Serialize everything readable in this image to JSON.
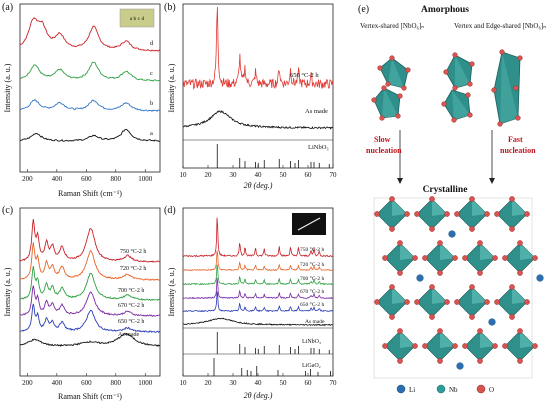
{
  "panels": {
    "a": {
      "label": "(a)",
      "xlabel": "Raman Shift (cm⁻¹)",
      "ylabel": "Intensity (a. u.)",
      "ticks": [
        "200",
        "400",
        "600",
        "800",
        "1000"
      ],
      "curve_labels": [
        "d",
        "c",
        "b",
        "a"
      ],
      "inset_text": "a b c d",
      "colors": [
        "#c8222a",
        "#2ea043",
        "#2f73c9",
        "#111111"
      ]
    },
    "b": {
      "label": "(b)",
      "ylabel": "Intensity (a. u.)",
      "xlabel": "2θ (deg.)",
      "ticks": [
        "10",
        "20",
        "30",
        "40",
        "50",
        "60",
        "70"
      ],
      "series_labels": [
        "650 °C-2 h",
        "As made"
      ],
      "reference": "LiNbO₃",
      "colors": [
        "#e23a34",
        "#111111"
      ]
    },
    "c": {
      "label": "(c)",
      "ylabel": "Intensity (a. u.)",
      "xlabel": "Raman Shift (cm⁻¹)",
      "ticks": [
        "200",
        "400",
        "600",
        "800",
        "1000"
      ],
      "series_labels": [
        "750 °C-2 h",
        "720 °C-2 h",
        "700 °C-2 h",
        "670 °C-2 h",
        "650 °C-2 h",
        "As made"
      ],
      "colors": [
        "#c8222a",
        "#e8642a",
        "#2ea043",
        "#7a2aa6",
        "#2a3fb8",
        "#111111"
      ]
    },
    "d": {
      "label": "(d)",
      "ylabel": "Intensity (a. u.)",
      "xlabel": "2θ (deg.)",
      "ticks": [
        "10",
        "20",
        "30",
        "40",
        "50",
        "60",
        "70"
      ],
      "series_labels": [
        "750 °C-2 h",
        "720 °C-2 h",
        "700 °C-2 h",
        "670 °C-2 h",
        "650 °C-2 h",
        "As made"
      ],
      "references": [
        "LiNbO₃",
        "LiGaO₂"
      ],
      "colors": [
        "#c8222a",
        "#e8642a",
        "#2ea043",
        "#7a2aa6",
        "#2a3fb8",
        "#111111"
      ]
    },
    "e": {
      "label": "(e)",
      "title_top": "Amorphous",
      "caption_left": "Vertex-shared [NbO₆]ₙ",
      "caption_right": "Vertex and Edge-shared [NbO₆]ₙ",
      "slow": "Slow nucleation",
      "fast": "Fast nucleation",
      "title_bottom": "Crystalline",
      "legend": [
        "Li",
        "Nb",
        "O"
      ],
      "colors": {
        "octahedron": "#2f8f8a",
        "li": "#2a6fb0",
        "nb": "#2d9c9a",
        "o": "#d9534f",
        "arrow_text": "#c0141b"
      }
    }
  },
  "chart_data": [
    {
      "type": "line",
      "panel": "a",
      "xlabel": "Raman Shift (cm⁻¹)",
      "ylabel": "Intensity (a. u.)",
      "xlim": [
        150,
        1100
      ],
      "series": [
        {
          "name": "d",
          "peaks": [
            [
              240,
              1.0
            ],
            [
              300,
              0.75
            ],
            [
              420,
              0.55
            ],
            [
              650,
              0.9
            ],
            [
              870,
              0.35
            ]
          ]
        },
        {
          "name": "c",
          "peaks": [
            [
              250,
              0.6
            ],
            [
              420,
              0.4
            ],
            [
              650,
              0.7
            ],
            [
              870,
              0.35
            ]
          ]
        },
        {
          "name": "b",
          "peaks": [
            [
              250,
              0.4
            ],
            [
              420,
              0.3
            ],
            [
              650,
              0.4
            ],
            [
              870,
              0.3
            ]
          ]
        },
        {
          "name": "a",
          "peaks": [
            [
              260,
              0.3
            ],
            [
              650,
              0.2
            ],
            [
              870,
              0.45
            ]
          ]
        }
      ]
    },
    {
      "type": "line",
      "panel": "b",
      "xlabel": "2θ (deg.)",
      "ylabel": "Intensity (a. u.)",
      "xlim": [
        10,
        70
      ],
      "series": [
        {
          "name": "650 °C-2 h",
          "peaks": [
            [
              23.7,
              1.0
            ],
            [
              32.7,
              0.35
            ],
            [
              34.8,
              0.2
            ],
            [
              39.0,
              0.15
            ],
            [
              48.5,
              0.2
            ],
            [
              53.0,
              0.18
            ],
            [
              56.2,
              0.15
            ],
            [
              61.2,
              0.1
            ]
          ]
        },
        {
          "name": "As made",
          "peaks": [
            [
              25,
              0.55
            ]
          ]
        }
      ],
      "reference_lines": [
        23.7,
        32.7,
        34.8,
        39.0,
        40.1,
        42.5,
        48.5,
        53.0,
        54.8,
        56.2,
        61.2,
        62.4,
        64.5,
        68.5
      ]
    },
    {
      "type": "line",
      "panel": "c",
      "xlabel": "Raman Shift (cm⁻¹)",
      "ylabel": "Intensity (a. u.)",
      "xlim": [
        150,
        1100
      ],
      "series": [
        {
          "name": "750 °C-2 h"
        },
        {
          "name": "720 °C-2 h"
        },
        {
          "name": "700 °C-2 h"
        },
        {
          "name": "670 °C-2 h"
        },
        {
          "name": "650 °C-2 h"
        },
        {
          "name": "As made"
        }
      ],
      "peaks_cm": [
        240,
        270,
        330,
        370,
        435,
        630,
        880
      ]
    },
    {
      "type": "line",
      "panel": "d",
      "xlabel": "2θ (deg.)",
      "ylabel": "Intensity (a. u.)",
      "xlim": [
        10,
        70
      ],
      "series": [
        {
          "name": "750 °C-2 h"
        },
        {
          "name": "720 °C-2 h"
        },
        {
          "name": "700 °C-2 h"
        },
        {
          "name": "670 °C-2 h"
        },
        {
          "name": "650 °C-2 h"
        },
        {
          "name": "As made"
        }
      ],
      "peaks_deg": [
        23.7,
        32.7,
        34.8,
        39.0,
        42.5,
        48.5,
        53.0,
        56.2,
        61.2,
        62.4,
        64.5
      ],
      "reference_lines": {
        "LiNbO₃": [
          23.7,
          32.7,
          34.8,
          39.0,
          40.1,
          42.5,
          48.5,
          53.0,
          54.8,
          56.2,
          61.2,
          62.4,
          64.5,
          68.5
        ],
        "LiGaO₂": [
          22.4,
          33.5,
          35.7,
          37.2,
          39.5,
          48.0,
          59.0,
          61.0,
          64.0,
          69.0
        ]
      }
    }
  ]
}
